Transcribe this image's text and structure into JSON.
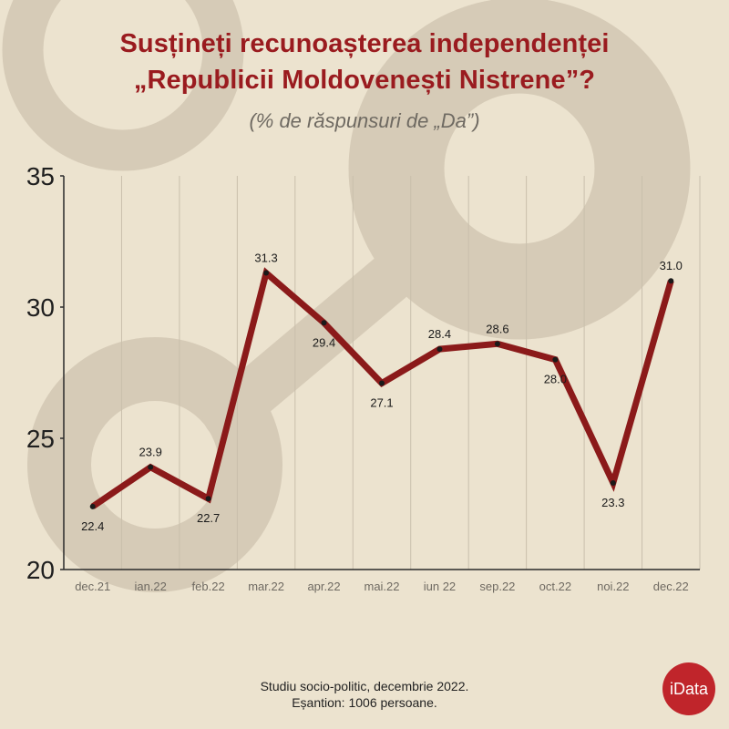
{
  "header": {
    "title_line1": "Susțineți recunoașterea independenței",
    "title_line2": "„Republicii Moldovenești Nistrene”?",
    "subtitle": "(% de răspunsuri de „Da”)"
  },
  "chart_data": {
    "type": "line",
    "categories": [
      "dec.21",
      "ian.22",
      "feb.22",
      "mar.22",
      "apr.22",
      "mai.22",
      "iun 22",
      "sep.22",
      "oct.22",
      "noi.22",
      "dec.22"
    ],
    "series": [
      {
        "values": [
          22.4,
          23.9,
          22.7,
          31.3,
          29.4,
          27.1,
          28.4,
          28.6,
          28.0,
          23.3,
          31.0
        ]
      }
    ],
    "data_labels": [
      "22.4",
      "23.9",
      "22.7",
      "31.3",
      "29.4",
      "27.1",
      "28.4",
      "28.6",
      "28.0",
      "23.3",
      "31.0"
    ],
    "ylim": [
      20,
      35
    ],
    "yticks": [
      20,
      25,
      30,
      35
    ],
    "grid": true,
    "line_color": "#8b1a1a"
  },
  "footer": {
    "line1": "Studiu socio-politic, decembrie 2022.",
    "line2": "Eșantion: 1006 persoane."
  },
  "logo": {
    "text": "iData"
  }
}
